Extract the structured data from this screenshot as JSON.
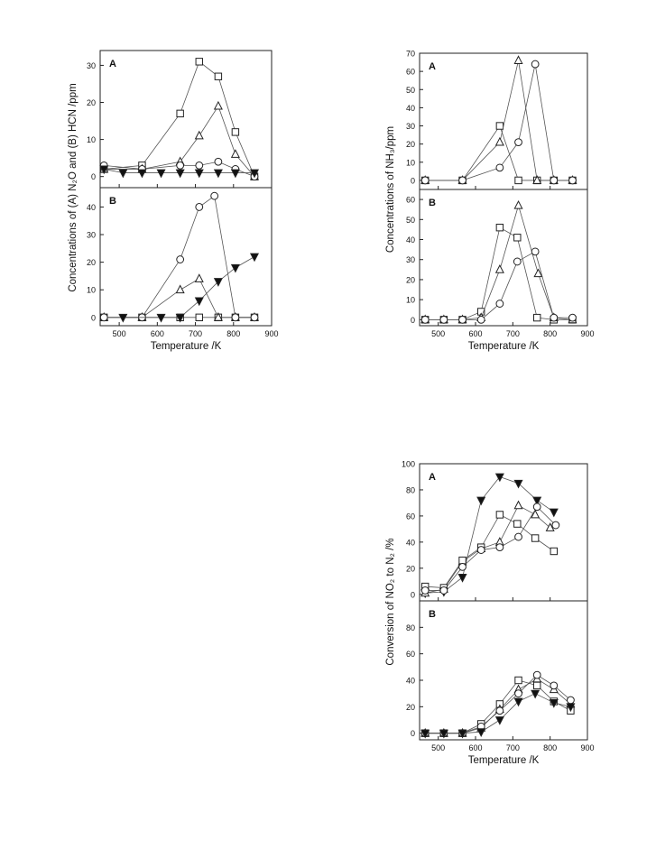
{
  "chart_data": [
    {
      "type": "scatter",
      "panel_group": "left",
      "xlabel": "Temperature /K",
      "ylabel": "Concentrations of (A) N₂O and (B) HCN /ppm",
      "xlim": [
        450,
        900
      ],
      "xticks": [
        500,
        600,
        700,
        800,
        900
      ],
      "panels": [
        {
          "label": "A",
          "ylim": [
            -3,
            34
          ],
          "yticks": [
            0,
            10,
            20,
            30
          ],
          "series": [
            {
              "marker": "square",
              "points": [
                [
                  460,
                  2
                ],
                [
                  560,
                  3
                ],
                [
                  660,
                  17
                ],
                [
                  710,
                  31
                ],
                [
                  760,
                  27
                ],
                [
                  805,
                  12
                ],
                [
                  855,
                  0
                ]
              ]
            },
            {
              "marker": "triangle",
              "points": [
                [
                  460,
                  2
                ],
                [
                  560,
                  2
                ],
                [
                  660,
                  4
                ],
                [
                  710,
                  11
                ],
                [
                  760,
                  19
                ],
                [
                  805,
                  6
                ],
                [
                  855,
                  0
                ]
              ]
            },
            {
              "marker": "circle",
              "points": [
                [
                  460,
                  3
                ],
                [
                  560,
                  2
                ],
                [
                  660,
                  3
                ],
                [
                  710,
                  3
                ],
                [
                  760,
                  4
                ],
                [
                  805,
                  2
                ],
                [
                  855,
                  0
                ]
              ]
            },
            {
              "marker": "triangle-down",
              "points": [
                [
                  460,
                  2
                ],
                [
                  510,
                  1
                ],
                [
                  560,
                  1
                ],
                [
                  610,
                  1
                ],
                [
                  660,
                  1
                ],
                [
                  710,
                  1
                ],
                [
                  760,
                  1
                ],
                [
                  805,
                  1
                ],
                [
                  855,
                  1
                ]
              ]
            }
          ]
        },
        {
          "label": "B",
          "ylim": [
            -3,
            47
          ],
          "yticks": [
            0,
            10,
            20,
            30,
            40
          ],
          "series": [
            {
              "marker": "square",
              "points": [
                [
                  460,
                  0
                ],
                [
                  560,
                  0
                ],
                [
                  660,
                  0
                ],
                [
                  710,
                  0
                ],
                [
                  760,
                  0
                ],
                [
                  805,
                  0
                ],
                [
                  855,
                  0
                ]
              ]
            },
            {
              "marker": "triangle",
              "points": [
                [
                  460,
                  0
                ],
                [
                  560,
                  0
                ],
                [
                  660,
                  10
                ],
                [
                  710,
                  14
                ],
                [
                  760,
                  0
                ],
                [
                  805,
                  0
                ],
                [
                  855,
                  0
                ]
              ]
            },
            {
              "marker": "circle",
              "points": [
                [
                  460,
                  0
                ],
                [
                  560,
                  0
                ],
                [
                  660,
                  21
                ],
                [
                  710,
                  40
                ],
                [
                  750,
                  44
                ],
                [
                  805,
                  0
                ],
                [
                  855,
                  0
                ]
              ]
            },
            {
              "marker": "triangle-down",
              "points": [
                [
                  510,
                  0
                ],
                [
                  610,
                  0
                ],
                [
                  660,
                  0
                ],
                [
                  710,
                  6
                ],
                [
                  760,
                  13
                ],
                [
                  805,
                  18
                ],
                [
                  855,
                  22
                ]
              ]
            }
          ]
        }
      ]
    },
    {
      "type": "scatter",
      "panel_group": "right-top",
      "xlabel": "Temperature /K",
      "ylabel": "Concentrations of NH₃/ppm",
      "xlim": [
        450,
        900
      ],
      "xticks": [
        500,
        600,
        700,
        800,
        900
      ],
      "panels": [
        {
          "label": "A",
          "ylim": [
            -5,
            70
          ],
          "yticks": [
            0,
            10,
            20,
            30,
            40,
            50,
            60,
            70
          ],
          "series": [
            {
              "marker": "square",
              "points": [
                [
                  465,
                  0
                ],
                [
                  565,
                  0
                ],
                [
                  665,
                  30
                ],
                [
                  715,
                  0
                ],
                [
                  765,
                  0
                ],
                [
                  810,
                  0
                ],
                [
                  860,
                  0
                ]
              ]
            },
            {
              "marker": "triangle",
              "points": [
                [
                  465,
                  0
                ],
                [
                  565,
                  0
                ],
                [
                  665,
                  21
                ],
                [
                  715,
                  66
                ],
                [
                  765,
                  0
                ],
                [
                  810,
                  0
                ],
                [
                  860,
                  0
                ]
              ]
            },
            {
              "marker": "circle",
              "points": [
                [
                  465,
                  0
                ],
                [
                  565,
                  0
                ],
                [
                  665,
                  7
                ],
                [
                  715,
                  21
                ],
                [
                  760,
                  64
                ],
                [
                  810,
                  0
                ],
                [
                  860,
                  0
                ]
              ]
            }
          ]
        },
        {
          "label": "B",
          "ylim": [
            -3,
            65
          ],
          "yticks": [
            0,
            10,
            20,
            30,
            40,
            50,
            60
          ],
          "series": [
            {
              "marker": "square",
              "points": [
                [
                  465,
                  0
                ],
                [
                  515,
                  0
                ],
                [
                  565,
                  0
                ],
                [
                  615,
                  4
                ],
                [
                  665,
                  46
                ],
                [
                  712,
                  41
                ],
                [
                  765,
                  1
                ],
                [
                  810,
                  0
                ],
                [
                  860,
                  0
                ]
              ]
            },
            {
              "marker": "triangle",
              "points": [
                [
                  465,
                  0
                ],
                [
                  515,
                  0
                ],
                [
                  565,
                  0
                ],
                [
                  615,
                  1
                ],
                [
                  665,
                  25
                ],
                [
                  715,
                  57
                ],
                [
                  768,
                  23
                ],
                [
                  810,
                  1
                ],
                [
                  860,
                  0
                ]
              ]
            },
            {
              "marker": "circle",
              "points": [
                [
                  465,
                  0
                ],
                [
                  515,
                  0
                ],
                [
                  565,
                  0
                ],
                [
                  615,
                  0
                ],
                [
                  665,
                  8
                ],
                [
                  712,
                  29
                ],
                [
                  760,
                  34
                ],
                [
                  810,
                  1
                ],
                [
                  860,
                  1
                ]
              ]
            }
          ]
        }
      ]
    },
    {
      "type": "scatter",
      "panel_group": "right-bottom",
      "xlabel": "Temperature /K",
      "ylabel": "Conversion of NO₂ to N₂ /%",
      "xlim": [
        450,
        900
      ],
      "xticks": [
        500,
        600,
        700,
        800,
        900
      ],
      "panels": [
        {
          "label": "A",
          "ylim": [
            -5,
            100
          ],
          "yticks": [
            0,
            20,
            40,
            60,
            80,
            100
          ],
          "series": [
            {
              "marker": "triangle-down",
              "points": [
                [
                  465,
                  1
                ],
                [
                  515,
                  2
                ],
                [
                  565,
                  13
                ],
                [
                  615,
                  72
                ],
                [
                  665,
                  90
                ],
                [
                  715,
                  85
                ],
                [
                  765,
                  72
                ],
                [
                  810,
                  63
                ]
              ]
            },
            {
              "marker": "triangle",
              "points": [
                [
                  465,
                  1
                ],
                [
                  515,
                  4
                ],
                [
                  565,
                  25
                ],
                [
                  615,
                  35
                ],
                [
                  665,
                  40
                ],
                [
                  715,
                  68
                ],
                [
                  760,
                  61
                ],
                [
                  800,
                  51
                ]
              ]
            },
            {
              "marker": "square",
              "points": [
                [
                  465,
                  6
                ],
                [
                  515,
                  5
                ],
                [
                  565,
                  26
                ],
                [
                  615,
                  36
                ],
                [
                  665,
                  61
                ],
                [
                  712,
                  54
                ],
                [
                  760,
                  43
                ],
                [
                  810,
                  33
                ]
              ]
            },
            {
              "marker": "circle",
              "points": [
                [
                  465,
                  3
                ],
                [
                  515,
                  3
                ],
                [
                  565,
                  21
                ],
                [
                  615,
                  34
                ],
                [
                  665,
                  36
                ],
                [
                  715,
                  44
                ],
                [
                  765,
                  67
                ],
                [
                  815,
                  53
                ]
              ]
            }
          ]
        },
        {
          "label": "B",
          "ylim": [
            -5,
            100
          ],
          "yticks": [
            0,
            20,
            40,
            60,
            80
          ],
          "series": [
            {
              "marker": "square",
              "points": [
                [
                  465,
                  0
                ],
                [
                  515,
                  0
                ],
                [
                  565,
                  0
                ],
                [
                  615,
                  7
                ],
                [
                  665,
                  22
                ],
                [
                  715,
                  40
                ],
                [
                  765,
                  36
                ],
                [
                  810,
                  24
                ],
                [
                  855,
                  17
                ]
              ]
            },
            {
              "marker": "triangle",
              "points": [
                [
                  465,
                  0
                ],
                [
                  515,
                  0
                ],
                [
                  565,
                  0
                ],
                [
                  615,
                  4
                ],
                [
                  665,
                  18
                ],
                [
                  715,
                  33
                ],
                [
                  765,
                  41
                ],
                [
                  810,
                  33
                ],
                [
                  855,
                  22
                ]
              ]
            },
            {
              "marker": "circle",
              "points": [
                [
                  465,
                  0
                ],
                [
                  515,
                  0
                ],
                [
                  565,
                  0
                ],
                [
                  615,
                  5
                ],
                [
                  665,
                  17
                ],
                [
                  715,
                  30
                ],
                [
                  765,
                  44
                ],
                [
                  810,
                  36
                ],
                [
                  855,
                  25
                ]
              ]
            },
            {
              "marker": "triangle-down",
              "points": [
                [
                  465,
                  0
                ],
                [
                  515,
                  0
                ],
                [
                  565,
                  0
                ],
                [
                  615,
                  1
                ],
                [
                  665,
                  10
                ],
                [
                  715,
                  24
                ],
                [
                  760,
                  30
                ],
                [
                  810,
                  23
                ],
                [
                  855,
                  20
                ]
              ]
            }
          ]
        }
      ]
    }
  ]
}
